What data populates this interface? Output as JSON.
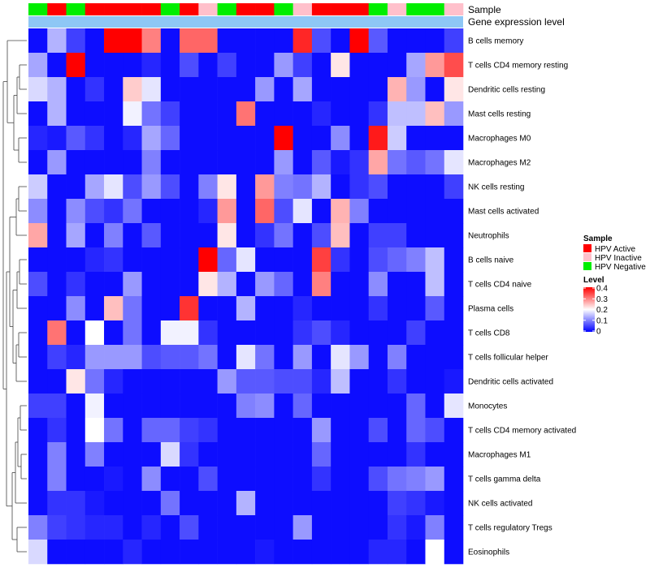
{
  "chart_data": {
    "type": "heatmap",
    "annotation_labels": [
      "Sample",
      "Gene expression level"
    ],
    "rows": [
      "B cells memory",
      "T cells CD4 memory resting",
      "Dendritic cells resting",
      "Mast cells resting",
      "Macrophages M0",
      "Macrophages M2",
      "NK cells resting",
      "Mast cells activated",
      "Neutrophils",
      "B cells naive",
      "T cells CD4 naive",
      "Plasma cells",
      "T cells CD8",
      "T cells follicular helper",
      "Dendritic cells activated",
      "Monocytes",
      "T cells CD4 memory activated",
      "Macrophages M1",
      "T cells gamma delta",
      "NK cells activated",
      "T cells regulatory  Tregs",
      "Eosinophils"
    ],
    "sample_groups": [
      "HPV Negative",
      "HPV Active",
      "HPV Negative",
      "HPV Active",
      "HPV Active",
      "HPV Active",
      "HPV Active",
      "HPV Negative",
      "HPV Active",
      "HPV Inactive",
      "HPV Negative",
      "HPV Active",
      "HPV Active",
      "HPV Negative",
      "HPV Inactive",
      "HPV Active",
      "HPV Active",
      "HPV Active",
      "HPV Negative",
      "HPV Inactive",
      "HPV Negative",
      "HPV Negative",
      "HPV Inactive"
    ],
    "sample_legend": {
      "title": "Sample",
      "entries": [
        {
          "label": "HPV Active",
          "color": "#ff0000"
        },
        {
          "label": "HPV Inactive",
          "color": "#ffc0cb"
        },
        {
          "label": "HPV Negative",
          "color": "#00ee00"
        }
      ]
    },
    "color_scale": {
      "title": "Level",
      "min": 0,
      "max": 0.4,
      "stops": [
        "#0000ff",
        "#ffffff",
        "#ff0000"
      ],
      "ticks": [
        "0.4",
        "0.3",
        "0.2",
        "0.1",
        "0"
      ]
    },
    "values": [
      [
        0.01,
        0.14,
        0.05,
        0.01,
        0.4,
        0.4,
        0.3,
        0.01,
        0.32,
        0.32,
        0.01,
        0.01,
        0.01,
        0.01,
        0.37,
        0.06,
        0.01,
        0.42,
        0.07,
        0.01,
        0.01,
        0.01,
        0.05
      ],
      [
        0.13,
        0.01,
        0.4,
        0.01,
        0.01,
        0.01,
        0.03,
        0.01,
        0.06,
        0.01,
        0.05,
        0.01,
        0.01,
        0.12,
        0.05,
        0.01,
        0.22,
        0.01,
        0.01,
        0.01,
        0.13,
        0.28,
        0.34
      ],
      [
        0.17,
        0.14,
        0.01,
        0.04,
        0.01,
        0.24,
        0.18,
        0.01,
        0.01,
        0.01,
        0.01,
        0.01,
        0.12,
        0.01,
        0.13,
        0.01,
        0.01,
        0.01,
        0.01,
        0.26,
        0.12,
        0.01,
        0.22
      ],
      [
        0.01,
        0.14,
        0.01,
        0.01,
        0.01,
        0.19,
        0.09,
        0.05,
        0.01,
        0.01,
        0.01,
        0.31,
        0.01,
        0.01,
        0.01,
        0.03,
        0.01,
        0.01,
        0.04,
        0.15,
        0.15,
        0.25,
        0.12
      ],
      [
        0.03,
        0.02,
        0.07,
        0.04,
        0.01,
        0.03,
        0.13,
        0.08,
        0.01,
        0.01,
        0.01,
        0.01,
        0.01,
        0.4,
        0.01,
        0.01,
        0.11,
        0.01,
        0.38,
        0.16,
        0.01,
        0.01,
        0.01
      ],
      [
        0.01,
        0.12,
        0.01,
        0.01,
        0.01,
        0.01,
        0.1,
        0.01,
        0.01,
        0.01,
        0.01,
        0.01,
        0.01,
        0.12,
        0.01,
        0.07,
        0.02,
        0.04,
        0.27,
        0.09,
        0.07,
        0.09,
        0.18
      ],
      [
        0.16,
        0.01,
        0.01,
        0.13,
        0.18,
        0.06,
        0.12,
        0.06,
        0.01,
        0.1,
        0.22,
        0.01,
        0.28,
        0.1,
        0.09,
        0.14,
        0.01,
        0.04,
        0.06,
        0.01,
        0.01,
        0.01,
        0.05
      ],
      [
        0.11,
        0.01,
        0.11,
        0.06,
        0.04,
        0.09,
        0.01,
        0.01,
        0.01,
        0.03,
        0.28,
        0.01,
        0.32,
        0.06,
        0.18,
        0.01,
        0.26,
        0.1,
        0.01,
        0.01,
        0.01,
        0.01,
        0.01
      ],
      [
        0.27,
        0.01,
        0.13,
        0.01,
        0.1,
        0.01,
        0.07,
        0.01,
        0.01,
        0.01,
        0.22,
        0.01,
        0.04,
        0.09,
        0.01,
        0.06,
        0.25,
        0.01,
        0.05,
        0.05,
        0.01,
        0.01,
        0.01
      ],
      [
        0.01,
        0.01,
        0.01,
        0.03,
        0.04,
        0.01,
        0.01,
        0.01,
        0.01,
        0.4,
        0.08,
        0.18,
        0.01,
        0.01,
        0.01,
        0.35,
        0.04,
        0.01,
        0.06,
        0.08,
        0.1,
        0.15,
        0.01
      ],
      [
        0.06,
        0.01,
        0.04,
        0.01,
        0.01,
        0.12,
        0.01,
        0.01,
        0.01,
        0.22,
        0.14,
        0.01,
        0.12,
        0.08,
        0.01,
        0.3,
        0.01,
        0.01,
        0.11,
        0.01,
        0.01,
        0.15,
        0.01
      ],
      [
        0.01,
        0.01,
        0.11,
        0.01,
        0.25,
        0.09,
        0.01,
        0.01,
        0.36,
        0.01,
        0.01,
        0.14,
        0.01,
        0.01,
        0.03,
        0.01,
        0.01,
        0.01,
        0.04,
        0.01,
        0.01,
        0.07,
        0.01
      ],
      [
        0.01,
        0.31,
        0.01,
        0.2,
        0.01,
        0.09,
        0.01,
        0.19,
        0.19,
        0.04,
        0.01,
        0.01,
        0.01,
        0.01,
        0.04,
        0.06,
        0.03,
        0.01,
        0.01,
        0.01,
        0.05,
        0.01,
        0.01
      ],
      [
        0.01,
        0.05,
        0.03,
        0.12,
        0.12,
        0.12,
        0.06,
        0.07,
        0.07,
        0.09,
        0.01,
        0.18,
        0.09,
        0.01,
        0.12,
        0.01,
        0.18,
        0.12,
        0.01,
        0.1,
        0.01,
        0.01,
        0.01
      ],
      [
        0.01,
        0.01,
        0.22,
        0.09,
        0.03,
        0.01,
        0.01,
        0.01,
        0.01,
        0.01,
        0.12,
        0.07,
        0.07,
        0.06,
        0.06,
        0.03,
        0.15,
        0.01,
        0.01,
        0.04,
        0.01,
        0.01,
        0.02
      ],
      [
        0.05,
        0.05,
        0.01,
        0.19,
        0.01,
        0.01,
        0.01,
        0.01,
        0.01,
        0.01,
        0.01,
        0.1,
        0.11,
        0.01,
        0.08,
        0.01,
        0.01,
        0.01,
        0.01,
        0.01,
        0.08,
        0.01,
        0.18
      ],
      [
        0.01,
        0.04,
        0.01,
        0.2,
        0.09,
        0.01,
        0.08,
        0.08,
        0.05,
        0.04,
        0.01,
        0.01,
        0.01,
        0.01,
        0.01,
        0.12,
        0.01,
        0.01,
        0.06,
        0.01,
        0.08,
        0.06,
        0.01
      ],
      [
        0.01,
        0.1,
        0.01,
        0.1,
        0.01,
        0.01,
        0.01,
        0.17,
        0.04,
        0.01,
        0.01,
        0.01,
        0.01,
        0.01,
        0.01,
        0.08,
        0.01,
        0.01,
        0.01,
        0.01,
        0.04,
        0.01,
        0.01
      ],
      [
        0.01,
        0.1,
        0.01,
        0.01,
        0.02,
        0.01,
        0.11,
        0.01,
        0.01,
        0.06,
        0.01,
        0.01,
        0.01,
        0.01,
        0.01,
        0.04,
        0.01,
        0.01,
        0.06,
        0.09,
        0.1,
        0.12,
        0.01
      ],
      [
        0.01,
        0.04,
        0.04,
        0.02,
        0.01,
        0.01,
        0.01,
        0.09,
        0.01,
        0.01,
        0.01,
        0.14,
        0.01,
        0.01,
        0.01,
        0.01,
        0.01,
        0.01,
        0.01,
        0.05,
        0.04,
        0.02,
        0.01
      ],
      [
        0.1,
        0.05,
        0.04,
        0.03,
        0.03,
        0.01,
        0.03,
        0.01,
        0.06,
        0.01,
        0.01,
        0.01,
        0.01,
        0.01,
        0.12,
        0.01,
        0.01,
        0.01,
        0.01,
        0.04,
        0.02,
        0.1,
        0.01
      ],
      [
        0.17,
        0.01,
        0.01,
        0.01,
        0.01,
        0.03,
        0.01,
        0.01,
        0.01,
        0.01,
        0.01,
        0.01,
        0.02,
        0.01,
        0.01,
        0.01,
        0.01,
        0.01,
        0.03,
        0.03,
        0.01,
        0.2,
        0.01
      ]
    ]
  }
}
